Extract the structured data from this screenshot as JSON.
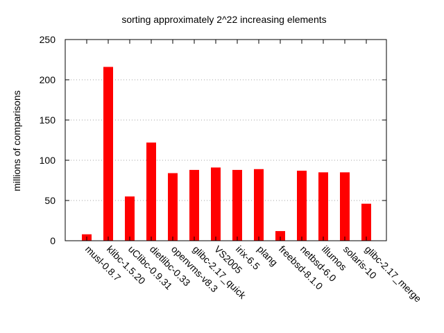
{
  "chart_data": {
    "type": "bar",
    "title": "sorting approximately 2^22 increasing elements",
    "xlabel": "",
    "ylabel": "millions of  comparisons",
    "ylim": [
      0,
      250
    ],
    "yticks": [
      0,
      50,
      100,
      150,
      200,
      250
    ],
    "grid": "horizontal dotted",
    "bar_color": "#ff0000",
    "categories": [
      "musl-0.8.7",
      "klibc-1.5.20",
      "uClibc-0.9.31",
      "dietlibc-0.33",
      "openvms-v8.3",
      "glibc-2.17_quick",
      "VS2005",
      "irix-6.5",
      "plang",
      "freebsd-8.1.0",
      "netbsd-6.0",
      "illumos",
      "solaris-10",
      "glibc-2.17_merge"
    ],
    "values": [
      8,
      216,
      55,
      122,
      84,
      88,
      91,
      88,
      89,
      12,
      87,
      85,
      85,
      46
    ]
  }
}
